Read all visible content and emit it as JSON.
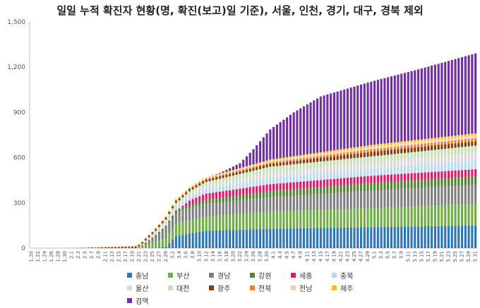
{
  "chart_data": {
    "type": "bar",
    "stacked": true,
    "title": "일일 누적 확진자 현황(명, 확진(보고)일 기준), 서울, 인천, 경기,  대구, 경북 제외",
    "xlabel": "",
    "ylabel": "",
    "ylim": [
      0,
      1500
    ],
    "yticks": [
      "0",
      "300",
      "600",
      "900",
      "1,200",
      "1,500"
    ],
    "ytick_values": [
      0,
      300,
      600,
      900,
      1200,
      1500
    ],
    "grid": false,
    "legend_position": "bottom",
    "date_range": {
      "start": "1.20",
      "end": "5.31"
    },
    "x_tick_labels": [
      "1.20",
      "1.22",
      "1.24",
      "1.26",
      "1.28",
      "1.30",
      "2.1",
      "2.3",
      "2.5",
      "2.7",
      "2.9",
      "2.11",
      "2.13",
      "2.15",
      "2.17",
      "2.19",
      "2.21",
      "2.23",
      "2.25",
      "2.27",
      "2.29",
      "3.2",
      "3.4",
      "3.6",
      "3.8",
      "3.10",
      "3.12",
      "3.14",
      "3.16",
      "3.18",
      "3.20",
      "3.22",
      "3.24",
      "3.26",
      "3.28",
      "3.30",
      "4.1",
      "4.3",
      "4.5",
      "4.7",
      "4.9",
      "4.11",
      "4.13",
      "4.15",
      "4.17",
      "4.19",
      "4.21",
      "4.23",
      "4.25",
      "4.27",
      "4.29",
      "5.1",
      "5.3",
      "5.5",
      "5.7",
      "5.9",
      "5.11",
      "5.13",
      "5.15",
      "5.17",
      "5.19",
      "5.21",
      "5.23",
      "5.25",
      "5.27",
      "5.29",
      "5.31"
    ],
    "series": [
      {
        "name": "충남",
        "color": "#2e75b6",
        "anchors": [
          [
            "1.20",
            0
          ],
          [
            "2.26",
            0
          ],
          [
            "2.29",
            10
          ],
          [
            "3.3",
            80
          ],
          [
            "3.8",
            100
          ],
          [
            "3.12",
            115
          ],
          [
            "3.20",
            120
          ],
          [
            "3.31",
            128
          ],
          [
            "4.20",
            135
          ],
          [
            "5.31",
            150
          ]
        ]
      },
      {
        "name": "부산",
        "color": "#70ad47",
        "anchors": [
          [
            "1.20",
            0
          ],
          [
            "2.20",
            0
          ],
          [
            "2.22",
            12
          ],
          [
            "2.25",
            38
          ],
          [
            "2.29",
            60
          ],
          [
            "3.4",
            85
          ],
          [
            "3.12",
            95
          ],
          [
            "3.31",
            115
          ],
          [
            "4.30",
            125
          ],
          [
            "5.31",
            145
          ]
        ]
      },
      {
        "name": "경남",
        "color": "#7f7f7f",
        "anchors": [
          [
            "1.20",
            0
          ],
          [
            "2.20",
            0
          ],
          [
            "2.22",
            6
          ],
          [
            "2.25",
            25
          ],
          [
            "2.29",
            65
          ],
          [
            "3.3",
            75
          ],
          [
            "3.12",
            85
          ],
          [
            "3.31",
            95
          ],
          [
            "4.30",
            117
          ],
          [
            "5.31",
            125
          ]
        ]
      },
      {
        "name": "강원",
        "color": "#548235",
        "anchors": [
          [
            "1.20",
            0
          ],
          [
            "2.21",
            0
          ],
          [
            "2.23",
            5
          ],
          [
            "2.27",
            10
          ],
          [
            "3.2",
            15
          ],
          [
            "3.12",
            26
          ],
          [
            "3.31",
            40
          ],
          [
            "4.30",
            53
          ],
          [
            "5.31",
            56
          ]
        ]
      },
      {
        "name": "세종",
        "color": "#e0196b",
        "anchors": [
          [
            "1.20",
            0
          ],
          [
            "3.3",
            0
          ],
          [
            "3.4",
            1
          ],
          [
            "3.7",
            30
          ],
          [
            "3.11",
            40
          ],
          [
            "3.31",
            46
          ],
          [
            "4.30",
            46
          ],
          [
            "5.31",
            47
          ]
        ]
      },
      {
        "name": "충북",
        "color": "#bdd7ee",
        "anchors": [
          [
            "1.20",
            0
          ],
          [
            "2.21",
            0
          ],
          [
            "2.22",
            2
          ],
          [
            "2.29",
            11
          ],
          [
            "3.6",
            20
          ],
          [
            "3.12",
            30
          ],
          [
            "3.31",
            41
          ],
          [
            "4.30",
            45
          ],
          [
            "5.31",
            59
          ]
        ]
      },
      {
        "name": "울산",
        "color": "#d9d9d9",
        "anchors": [
          [
            "1.20",
            0
          ],
          [
            "2.21",
            0
          ],
          [
            "2.22",
            2
          ],
          [
            "2.29",
            17
          ],
          [
            "3.12",
            25
          ],
          [
            "3.31",
            39
          ],
          [
            "4.30",
            43
          ],
          [
            "5.31",
            51
          ]
        ]
      },
      {
        "name": "대전",
        "color": "#c5e0b4",
        "anchors": [
          [
            "1.20",
            0
          ],
          [
            "2.20",
            0
          ],
          [
            "2.21",
            2
          ],
          [
            "2.29",
            14
          ],
          [
            "3.12",
            22
          ],
          [
            "3.31",
            36
          ],
          [
            "4.20",
            39
          ],
          [
            "4.30",
            40
          ],
          [
            "5.31",
            46
          ]
        ]
      },
      {
        "name": "광주",
        "color": "#843c0c",
        "anchors": [
          [
            "1.20",
            0
          ],
          [
            "2.3",
            0
          ],
          [
            "2.4",
            1
          ],
          [
            "2.20",
            9
          ],
          [
            "3.12",
            15
          ],
          [
            "3.31",
            19
          ],
          [
            "4.30",
            30
          ],
          [
            "5.31",
            30
          ]
        ]
      },
      {
        "name": "전북",
        "color": "#ed7d31",
        "anchors": [
          [
            "1.20",
            0
          ],
          [
            "1.30",
            0
          ],
          [
            "1.31",
            1
          ],
          [
            "2.20",
            5
          ],
          [
            "3.12",
            7
          ],
          [
            "3.31",
            10
          ],
          [
            "4.30",
            18
          ],
          [
            "5.31",
            20
          ]
        ]
      },
      {
        "name": "전남",
        "color": "#f8cbad",
        "anchors": [
          [
            "1.20",
            0
          ],
          [
            "2.3",
            0
          ],
          [
            "2.4",
            1
          ],
          [
            "2.29",
            3
          ],
          [
            "3.12",
            4
          ],
          [
            "3.31",
            9
          ],
          [
            "4.30",
            15
          ],
          [
            "5.31",
            18
          ]
        ]
      },
      {
        "name": "제주",
        "color": "#ffc000",
        "anchors": [
          [
            "1.20",
            0
          ],
          [
            "2.19",
            0
          ],
          [
            "2.20",
            1
          ],
          [
            "2.29",
            2
          ],
          [
            "3.12",
            4
          ],
          [
            "3.31",
            9
          ],
          [
            "4.30",
            13
          ],
          [
            "5.31",
            14
          ]
        ]
      },
      {
        "name": "검역",
        "color": "#7030a0",
        "anchors": [
          [
            "1.20",
            0
          ],
          [
            "3.13",
            0
          ],
          [
            "3.16",
            5
          ],
          [
            "3.22",
            32
          ],
          [
            "3.26",
            100
          ],
          [
            "3.31",
            200
          ],
          [
            "4.7",
            290
          ],
          [
            "4.15",
            370
          ],
          [
            "4.30",
            420
          ],
          [
            "5.15",
            470
          ],
          [
            "5.31",
            530
          ]
        ]
      }
    ]
  }
}
